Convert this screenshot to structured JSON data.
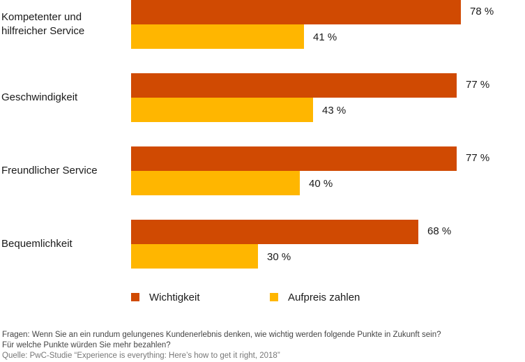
{
  "chart_data": {
    "type": "bar",
    "orientation": "horizontal",
    "categories": [
      "Kompetenter und hilfreicher Service",
      "Geschwindigkeit",
      "Freundlicher Service",
      "Bequemlichkeit"
    ],
    "category_lines": [
      [
        "Kompetenter und",
        "hilfreicher Service"
      ],
      [
        "Geschwindigkeit"
      ],
      [
        "Freundlicher Service"
      ],
      [
        "Bequemlichkeit"
      ]
    ],
    "series": [
      {
        "name": "Wichtigkeit",
        "color": "#D04A02",
        "values": [
          78,
          77,
          77,
          68
        ],
        "labels": [
          "78 %",
          "77 %",
          "77 %",
          "68 %"
        ]
      },
      {
        "name": "Aufpreis zahlen",
        "color": "#FFB600",
        "values": [
          41,
          43,
          40,
          30
        ],
        "labels": [
          "41 %",
          "43 %",
          "40 %",
          "30 %"
        ]
      }
    ],
    "unit": "%",
    "xlim": [
      0,
      100
    ],
    "legend_position": "bottom"
  },
  "footer": {
    "question_line1": "Fragen: Wenn Sie an ein rundum gelungenes Kundenerlebnis denken, wie wichtig werden folgende Punkte in Zukunft sein?",
    "question_line2": "Für welche Punkte würden Sie mehr bezahlen?",
    "source": "Quelle: PwC-Studie “Experience is everything: Here’s how to get it right, 2018”"
  }
}
